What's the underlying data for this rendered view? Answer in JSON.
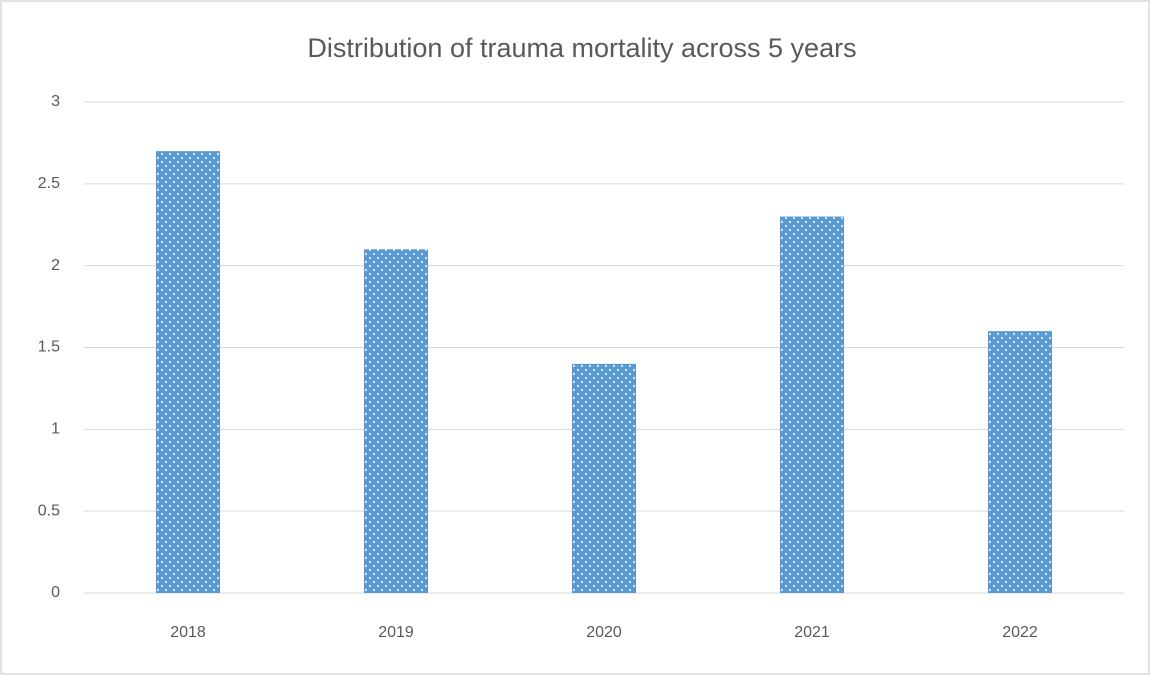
{
  "chart_data": {
    "type": "bar",
    "title": "Distribution of trauma mortality across 5 years",
    "categories": [
      "2018",
      "2019",
      "2020",
      "2021",
      "2022"
    ],
    "values": [
      2.7,
      2.1,
      1.4,
      2.3,
      1.6
    ],
    "color": "#5b9bd5",
    "ylim": [
      0,
      3
    ],
    "yticks": [
      0,
      0.5,
      1,
      1.5,
      2,
      2.5,
      3
    ],
    "grid": true
  }
}
